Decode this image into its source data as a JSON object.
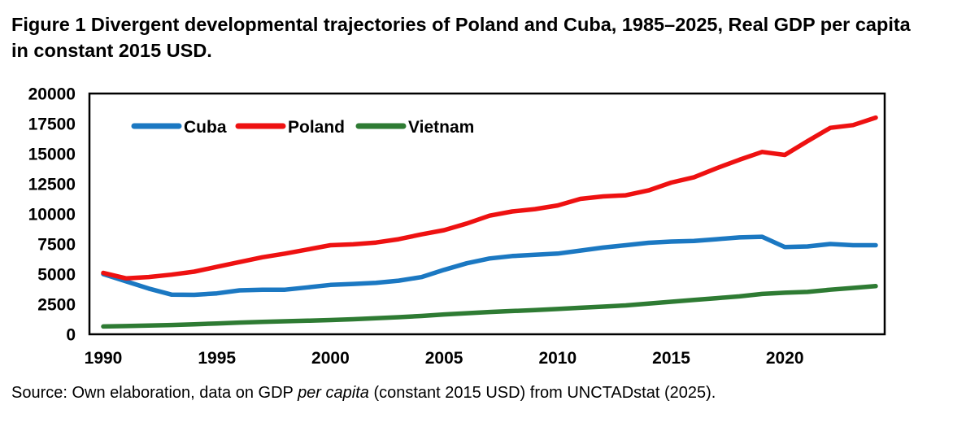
{
  "figure": {
    "title_lines": [
      "Figure 1 Divergent developmental trajectories of Poland and Cuba, 1985–2025, Real GDP per capita",
      "in constant 2015 USD."
    ],
    "source": {
      "prefix": "Source: Own elaboration, data on GDP ",
      "italic": "per capita",
      "suffix": " (constant 2015 USD) from UNCTADstat (2025)."
    }
  },
  "chart_data": {
    "type": "line",
    "title": "Figure 1 Divergent developmental trajectories of Poland and Cuba, 1985–2025, Real GDP per capita in constant 2015 USD.",
    "xlabel": "",
    "ylabel": "",
    "x": [
      1990,
      1991,
      1992,
      1993,
      1994,
      1995,
      1996,
      1997,
      1998,
      1999,
      2000,
      2001,
      2002,
      2003,
      2004,
      2005,
      2006,
      2007,
      2008,
      2009,
      2010,
      2011,
      2012,
      2013,
      2014,
      2015,
      2016,
      2017,
      2018,
      2019,
      2020,
      2021,
      2022,
      2023,
      2024
    ],
    "series": [
      {
        "name": "Cuba",
        "color": "#1b78c2",
        "values": [
          5000,
          4400,
          3800,
          3300,
          3280,
          3400,
          3650,
          3700,
          3700,
          3900,
          4100,
          4180,
          4280,
          4450,
          4750,
          5350,
          5900,
          6300,
          6500,
          6600,
          6700,
          6950,
          7200,
          7400,
          7600,
          7700,
          7750,
          7900,
          8050,
          8100,
          7250,
          7300,
          7500,
          7400,
          7400
        ]
      },
      {
        "name": "Poland",
        "color": "#ee1111",
        "values": [
          5100,
          4650,
          4760,
          4950,
          5200,
          5600,
          6000,
          6400,
          6700,
          7050,
          7400,
          7470,
          7620,
          7900,
          8300,
          8650,
          9200,
          9850,
          10200,
          10400,
          10700,
          11250,
          11450,
          11550,
          11950,
          12600,
          13050,
          13800,
          14500,
          15150,
          14900,
          16050,
          17150,
          17380,
          18000
        ]
      },
      {
        "name": "Vietnam",
        "color": "#2e7b33",
        "values": [
          650,
          680,
          720,
          770,
          830,
          900,
          970,
          1030,
          1080,
          1130,
          1180,
          1250,
          1330,
          1420,
          1520,
          1650,
          1750,
          1850,
          1930,
          2010,
          2100,
          2200,
          2300,
          2400,
          2550,
          2700,
          2850,
          3000,
          3150,
          3350,
          3450,
          3520,
          3700,
          3850,
          4000
        ]
      }
    ],
    "xticks": [
      1990,
      1995,
      2000,
      2005,
      2010,
      2015,
      2020
    ],
    "yticks": [
      0,
      2500,
      5000,
      7500,
      10000,
      12500,
      15000,
      17500,
      20000
    ],
    "ylim": [
      0,
      20000
    ],
    "xlim": [
      1990,
      2024
    ],
    "grid": false,
    "legend_position": "top-left-inside",
    "axis_color": "#000000",
    "background": "#ffffff"
  }
}
